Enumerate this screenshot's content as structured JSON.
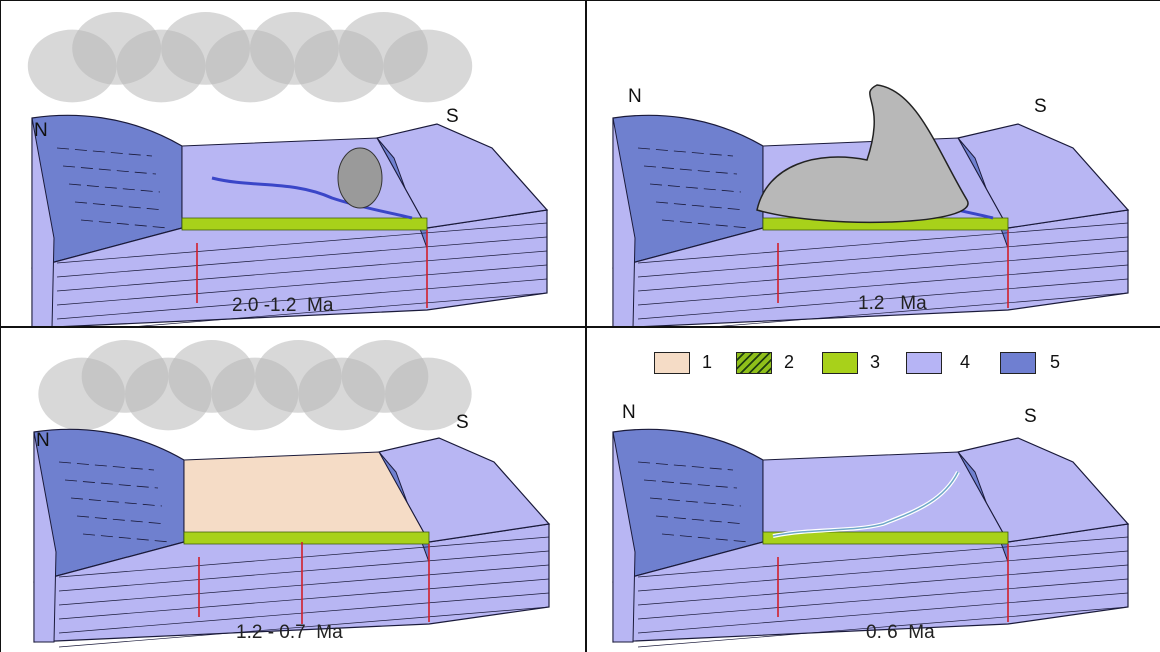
{
  "panels": [
    {
      "caption": "2.0 -1.2  Ma",
      "north": "N",
      "south": "S"
    },
    {
      "caption": "1.2   Ma",
      "north": "N",
      "south": "S"
    },
    {
      "caption": "1.2 - 0.7  Ma",
      "north": "N",
      "south": "S"
    },
    {
      "caption": "0. 6  Ma",
      "north": "N",
      "south": "S"
    }
  ],
  "legend": [
    {
      "label": "1",
      "color": "#f5dcc6"
    },
    {
      "label": "2",
      "color": "#8fbf1a",
      "pattern": "hatched"
    },
    {
      "label": "3",
      "color": "#a8d11a"
    },
    {
      "label": "4",
      "color": "#b6b4f5"
    },
    {
      "label": "5",
      "color": "#6f7fd1"
    }
  ],
  "colors": {
    "light_block": "#b8b6f3",
    "dark_block": "#6f80cf",
    "fault": "#d11f2a",
    "cloud": "#b8b8b8"
  }
}
